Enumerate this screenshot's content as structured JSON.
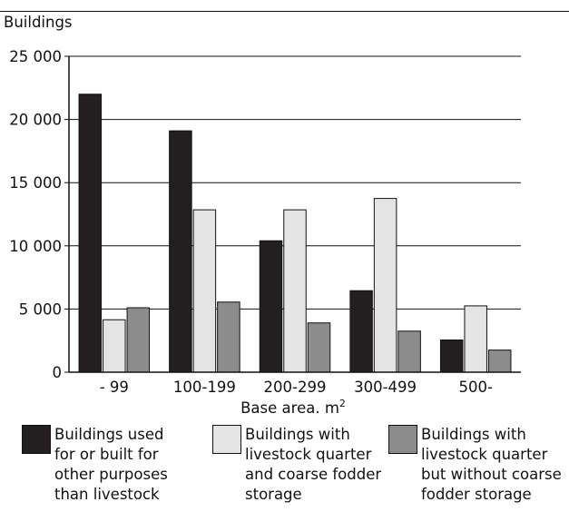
{
  "chart_data": {
    "type": "bar",
    "ylabel": "Buildings",
    "xlabel": "Base area. m",
    "xlabel_sup": "2",
    "ylim": [
      0,
      25000
    ],
    "yticks": [
      0,
      5000,
      10000,
      15000,
      20000,
      25000
    ],
    "ytick_labels": [
      "0",
      "5 000",
      "10 000",
      "15 000",
      "20 000",
      "25 000"
    ],
    "grid": true,
    "legend_position": "bottom",
    "categories": [
      "-  99",
      "100-199",
      "200-299",
      "300-499",
      "500-"
    ],
    "series": [
      {
        "name": "Buildings used for or built for other purposes than livestock",
        "color": "#231f20",
        "values": [
          22000,
          19100,
          10400,
          6450,
          2550
        ]
      },
      {
        "name": "Buildings with livestock quarter and coarse fodder storage",
        "color": "#e4e4e4",
        "values": [
          4150,
          12850,
          12850,
          13750,
          5250
        ]
      },
      {
        "name": "Buildings with livestock quarter but without coarse fodder storage",
        "color": "#8c8c8c",
        "values": [
          5100,
          5550,
          3900,
          3250,
          1750
        ]
      }
    ]
  },
  "legend": {
    "items": [
      {
        "label": "Buildings used\nfor or built for\nother purposes\nthan livestock",
        "color": "#231f20"
      },
      {
        "label": "Buildings with\nlivestock quarter\nand coarse fodder\nstorage",
        "color": "#e4e4e4"
      },
      {
        "label": "Buildings with\nlivestock quarter\nbut without coarse\nfodder storage",
        "color": "#8c8c8c"
      }
    ]
  }
}
